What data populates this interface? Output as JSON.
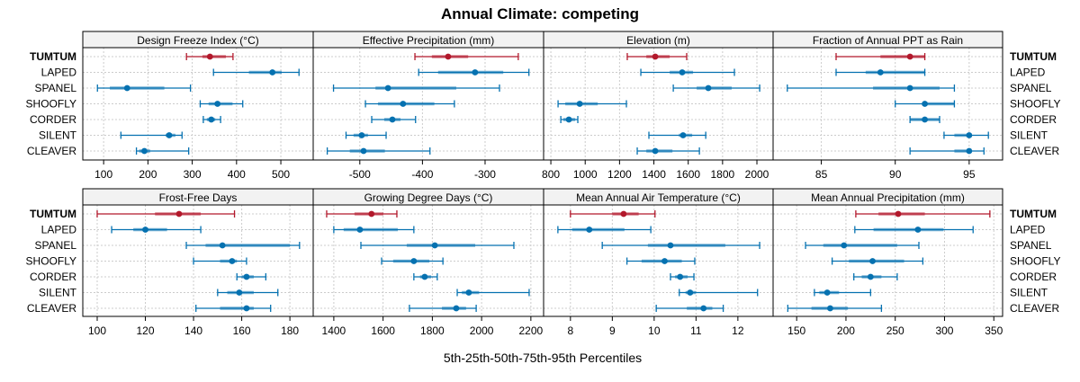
{
  "chart_data": {
    "type": "dot-interval",
    "title": "Annual Climate: competing",
    "xlabel": "5th-25th-50th-75th-95th Percentiles",
    "ylabel": "",
    "grid": true,
    "colors": {
      "highlight": "#b2182b",
      "default": "#0571b0"
    },
    "highlight_row": "TUMTUM",
    "rows": [
      "TUMTUM",
      "LAPED",
      "SPANEL",
      "SHOOFLY",
      "CORDER",
      "SILENT",
      "CLEAVER"
    ],
    "percentile_order": [
      "p5",
      "p25",
      "p50",
      "p75",
      "p95"
    ],
    "panels": [
      {
        "title": "Design Freeze Index (°C)",
        "xlim": [
          55,
          571
        ],
        "ticks": [
          100,
          200,
          300,
          400,
          500
        ],
        "tick_labels": [
          "100",
          "200",
          "300",
          "400",
          "500"
        ],
        "values": [
          [
            287,
            323,
            340,
            376,
            392
          ],
          [
            348,
            428,
            481,
            502,
            541
          ],
          [
            86,
            114,
            153,
            237,
            296
          ],
          [
            318,
            337,
            357,
            391,
            414
          ],
          [
            325,
            333,
            343,
            352,
            364
          ],
          [
            139,
            240,
            248,
            262,
            277
          ],
          [
            174,
            180,
            192,
            205,
            292
          ]
        ]
      },
      {
        "title": "Effective Precipitation (mm)",
        "xlim": [
          -573,
          -208
        ],
        "ticks": [
          -500,
          -400,
          -300
        ],
        "tick_labels": [
          "-500",
          "-400",
          "-300"
        ],
        "values": [
          [
            -412,
            -385,
            -359,
            -327,
            -247
          ],
          [
            -406,
            -375,
            -316,
            -271,
            -230
          ],
          [
            -542,
            -475,
            -455,
            -346,
            -277
          ],
          [
            -491,
            -471,
            -431,
            -381,
            -349
          ],
          [
            -481,
            -461,
            -448,
            -435,
            -411
          ],
          [
            -522,
            -510,
            -497,
            -487,
            -458
          ],
          [
            -552,
            -516,
            -494,
            -460,
            -388
          ]
        ]
      },
      {
        "title": "Elevation (m)",
        "xlim": [
          763,
          2089
        ],
        "ticks": [
          800,
          1000,
          1200,
          1400,
          1600,
          1800,
          2000
        ],
        "tick_labels": [
          "800",
          "1000",
          "1200",
          "1400",
          "1600",
          "1800",
          "2000"
        ],
        "values": [
          [
            1245,
            1356,
            1408,
            1492,
            1591
          ],
          [
            1324,
            1492,
            1565,
            1628,
            1869
          ],
          [
            1513,
            1649,
            1717,
            1853,
            2016
          ],
          [
            842,
            884,
            968,
            1073,
            1240
          ],
          [
            858,
            873,
            905,
            942,
            957
          ],
          [
            1371,
            1545,
            1570,
            1623,
            1702
          ],
          [
            1303,
            1356,
            1408,
            1508,
            1665
          ]
        ]
      },
      {
        "title": "Fraction of Annual PPT as Rain",
        "xlim": [
          81.8,
          97.2
        ],
        "ticks": [
          85,
          90,
          95
        ],
        "tick_labels": [
          "85",
          "90",
          "95"
        ],
        "values": [
          [
            86.0,
            89.0,
            91.0,
            92.0,
            92.0
          ],
          [
            86.0,
            88.0,
            89.0,
            92.0,
            92.0
          ],
          [
            82.7,
            88.5,
            91.0,
            93.0,
            94.0
          ],
          [
            90.0,
            92.0,
            92.0,
            94.0,
            94.0
          ],
          [
            91.0,
            91.0,
            92.0,
            93.0,
            93.0
          ],
          [
            93.3,
            94.0,
            95.0,
            95.0,
            96.3
          ],
          [
            91.0,
            94.0,
            95.0,
            95.0,
            96.0
          ]
        ]
      },
      {
        "title": "Frost-Free Days",
        "xlim": [
          94.4,
          189.3
        ],
        "ticks": [
          100,
          120,
          140,
          160,
          180
        ],
        "tick_labels": [
          "100",
          "120",
          "140",
          "160",
          "180"
        ],
        "values": [
          [
            100,
            124,
            134,
            143,
            157
          ],
          [
            106,
            115,
            120,
            129,
            143
          ],
          [
            137,
            145,
            152,
            180,
            184
          ],
          [
            140,
            151,
            156,
            158,
            162
          ],
          [
            158,
            160,
            162,
            165,
            170
          ],
          [
            150,
            154,
            159,
            165,
            175
          ],
          [
            141,
            151,
            162,
            165,
            172
          ]
        ]
      },
      {
        "title": "Growing Degree Days (°C)",
        "xlim": [
          1320,
          2248
        ],
        "ticks": [
          1400,
          1600,
          1800,
          2000,
          2200
        ],
        "tick_labels": [
          "1400",
          "1600",
          "1800",
          "2000",
          "2200"
        ],
        "values": [
          [
            1371,
            1484,
            1553,
            1601,
            1656
          ],
          [
            1400,
            1440,
            1506,
            1660,
            1725
          ],
          [
            1510,
            1696,
            1810,
            1974,
            2131
          ],
          [
            1594,
            1641,
            1725,
            1788,
            1843
          ],
          [
            1725,
            1750,
            1769,
            1795,
            1820
          ],
          [
            1901,
            1920,
            1948,
            1990,
            2193
          ],
          [
            1707,
            1839,
            1897,
            1937,
            1978
          ]
        ]
      },
      {
        "title": "Mean Annual Air Temperature (°C)",
        "xlim": [
          7.38,
          12.82
        ],
        "ticks": [
          8,
          9,
          10,
          11,
          12
        ],
        "tick_labels": [
          "8",
          "9",
          "10",
          "11",
          "12"
        ],
        "values": [
          [
            8.0,
            9.0,
            9.27,
            9.63,
            10.02
          ],
          [
            7.7,
            8.04,
            8.45,
            9.29,
            9.92
          ],
          [
            8.76,
            9.85,
            10.39,
            11.7,
            12.52
          ],
          [
            9.35,
            9.7,
            10.25,
            10.66,
            10.97
          ],
          [
            10.39,
            10.5,
            10.62,
            10.8,
            10.95
          ],
          [
            10.6,
            10.75,
            10.86,
            11.0,
            12.47
          ],
          [
            10.05,
            10.78,
            11.18,
            11.39,
            11.65
          ]
        ]
      },
      {
        "title": "Mean Annual Precipitation (mm)",
        "xlim": [
          127,
          358
        ],
        "ticks": [
          150,
          200,
          250,
          300,
          350
        ],
        "tick_labels": [
          "150",
          "200",
          "250",
          "300",
          "350"
        ],
        "values": [
          [
            210,
            233,
            253,
            280,
            346
          ],
          [
            209,
            228,
            273,
            299,
            329
          ],
          [
            159,
            177,
            198,
            252,
            274
          ],
          [
            186,
            203,
            227,
            259,
            278
          ],
          [
            208,
            216,
            225,
            236,
            252
          ],
          [
            168,
            173,
            181,
            193,
            225
          ],
          [
            141,
            165,
            184,
            202,
            236
          ]
        ]
      }
    ]
  }
}
